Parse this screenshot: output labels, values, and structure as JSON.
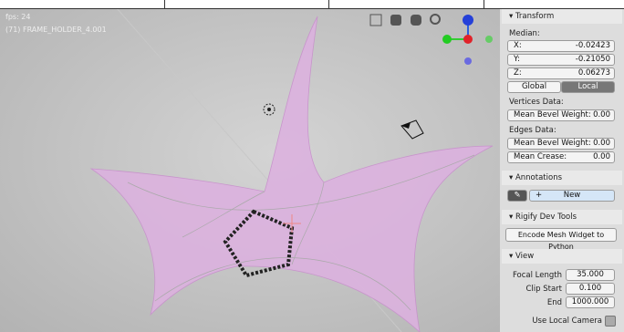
{
  "viewport": {
    "fps": "fps: 24",
    "object": "(71) FRAME_HOLDER_4.001"
  },
  "panel": {
    "transform": {
      "title": "Transform",
      "median": "Median:",
      "x_label": "X:",
      "x_value": "-0.02423",
      "y_label": "Y:",
      "y_value": "-0.21050",
      "z_label": "Z:",
      "z_value": "0.06273",
      "global": "Global",
      "local": "Local",
      "vertices_data": "Vertices Data:",
      "vertex_bevel_label": "Mean Bevel Weight:",
      "vertex_bevel_value": "0.00",
      "edges_data": "Edges Data:",
      "edge_bevel_label": "Mean Bevel Weight:",
      "edge_bevel_value": "0.00",
      "crease_label": "Mean Crease:",
      "crease_value": "0.00"
    },
    "annotations": {
      "title": "Annotations",
      "new": "New"
    },
    "rigify": {
      "title": "Rigify Dev Tools",
      "encode": "Encode Mesh Widget to Python"
    },
    "view": {
      "title": "View",
      "focal_label": "Focal Length",
      "focal_value": "35.000",
      "clip_start_label": "Clip Start",
      "clip_start_value": "0.100",
      "end_label": "End",
      "end_value": "1000.000",
      "local_camera": "Use Local Camera"
    }
  }
}
